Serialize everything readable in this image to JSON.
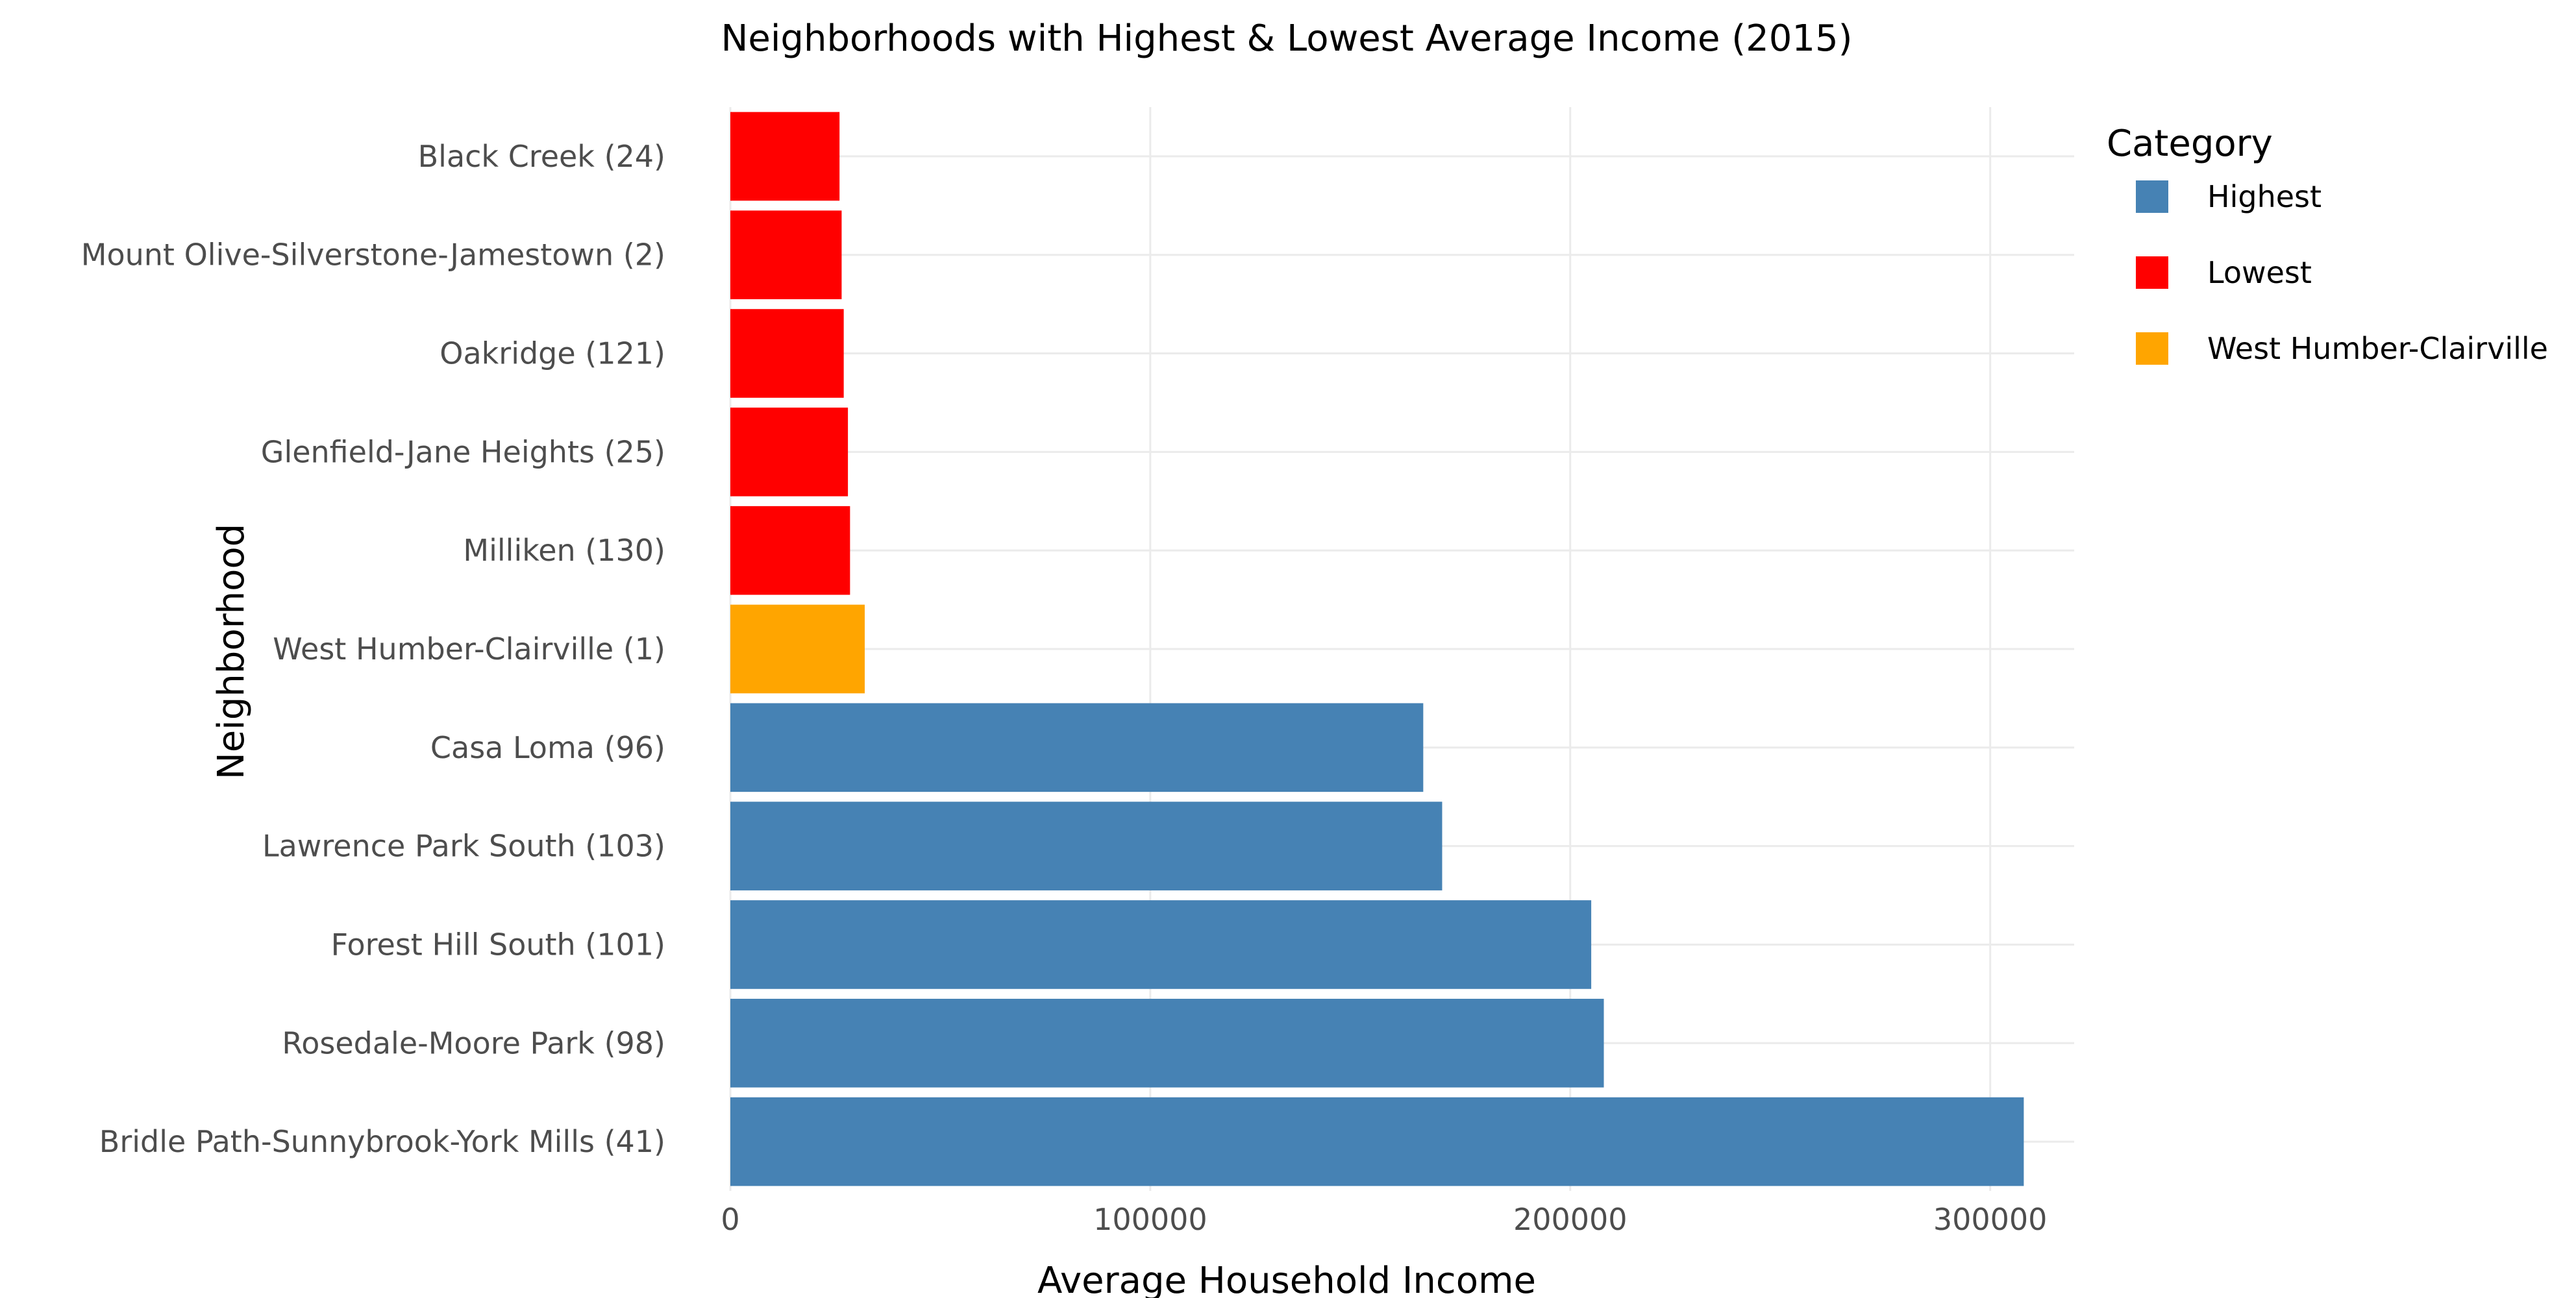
{
  "chart_data": {
    "type": "bar",
    "orientation": "horizontal",
    "title": "Neighborhoods with Highest & Lowest Average Income (2015)",
    "xlabel": "Average Household Income",
    "ylabel": "Neighborhood",
    "xlim": [
      0,
      320000
    ],
    "xticks": [
      0,
      100000,
      200000,
      300000
    ],
    "xtick_labels": [
      "0",
      "100000",
      "200000",
      "300000"
    ],
    "grid": true,
    "legend": {
      "title": "Category",
      "placement": "right",
      "entries": [
        {
          "name": "Highest",
          "color": "#4682B4"
        },
        {
          "name": "Lowest",
          "color": "#FF0000"
        },
        {
          "name": "West Humber-Clairville",
          "color": "#FFA500"
        }
      ]
    },
    "categories": [
      "Black Creek (24)",
      "Mount Olive-Silverstone-Jamestown (2)",
      "Oakridge (121)",
      "Glenfield-Jane Heights (25)",
      "Milliken (130)",
      "West Humber-Clairville (1)",
      "Casa Loma (96)",
      "Lawrence Park South (103)",
      "Forest Hill South (101)",
      "Rosedale-Moore Park (98)",
      "Bridle Path-Sunnybrook-York Mills (41)"
    ],
    "values": [
      26000,
      26500,
      27000,
      28000,
      28500,
      32000,
      165000,
      169500,
      205000,
      208000,
      308000
    ],
    "bar_category": [
      "Lowest",
      "Lowest",
      "Lowest",
      "Lowest",
      "Lowest",
      "West Humber-Clairville",
      "Highest",
      "Highest",
      "Highest",
      "Highest",
      "Highest"
    ]
  }
}
